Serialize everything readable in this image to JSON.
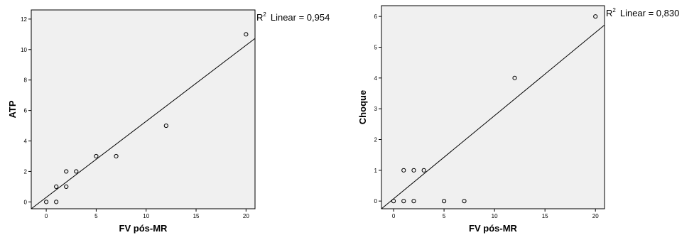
{
  "chart_data": [
    {
      "type": "scatter",
      "xlabel": "FV pós-MR",
      "ylabel": "ATP",
      "xlim": [
        -1.5,
        20.9
      ],
      "ylim": [
        -0.45,
        12.6
      ],
      "xticks": [
        0,
        5,
        10,
        15,
        20
      ],
      "yticks": [
        0,
        2,
        4,
        6,
        8,
        10,
        12
      ],
      "points": [
        {
          "x": 0,
          "y": 0
        },
        {
          "x": 1,
          "y": 0
        },
        {
          "x": 1,
          "y": 1
        },
        {
          "x": 2,
          "y": 1
        },
        {
          "x": 2,
          "y": 2
        },
        {
          "x": 3,
          "y": 2
        },
        {
          "x": 5,
          "y": 3
        },
        {
          "x": 7,
          "y": 3
        },
        {
          "x": 12,
          "y": 5
        },
        {
          "x": 20,
          "y": 11
        }
      ],
      "fit_line": {
        "x1": -1.5,
        "y1": -0.45,
        "x2": 20.9,
        "y2": 10.73
      },
      "annotation": {
        "r2_prefix": "R",
        "r2_sup": "2",
        "r2_text": "Linear = 0,954"
      },
      "grid": false,
      "background": "#f0f0f0"
    },
    {
      "type": "scatter",
      "xlabel": "FV pós-MR",
      "ylabel": "Choque",
      "xlim": [
        -1.2,
        20.9
      ],
      "ylim": [
        -0.25,
        6.35
      ],
      "xticks": [
        0,
        5,
        10,
        15,
        20
      ],
      "yticks": [
        0,
        1,
        2,
        3,
        4,
        5,
        6
      ],
      "points": [
        {
          "x": 0,
          "y": 0
        },
        {
          "x": 1,
          "y": 0
        },
        {
          "x": 2,
          "y": 0
        },
        {
          "x": 5,
          "y": 0
        },
        {
          "x": 7,
          "y": 0
        },
        {
          "x": 1,
          "y": 1
        },
        {
          "x": 2,
          "y": 1
        },
        {
          "x": 3,
          "y": 1
        },
        {
          "x": 12,
          "y": 4
        },
        {
          "x": 20,
          "y": 6
        }
      ],
      "fit_line": {
        "x1": -1.2,
        "y1": -0.25,
        "x2": 20.9,
        "y2": 5.72
      },
      "annotation": {
        "r2_prefix": "R",
        "r2_sup": "2",
        "r2_text": "Linear = 0,830"
      },
      "grid": false,
      "background": "#f0f0f0"
    }
  ]
}
